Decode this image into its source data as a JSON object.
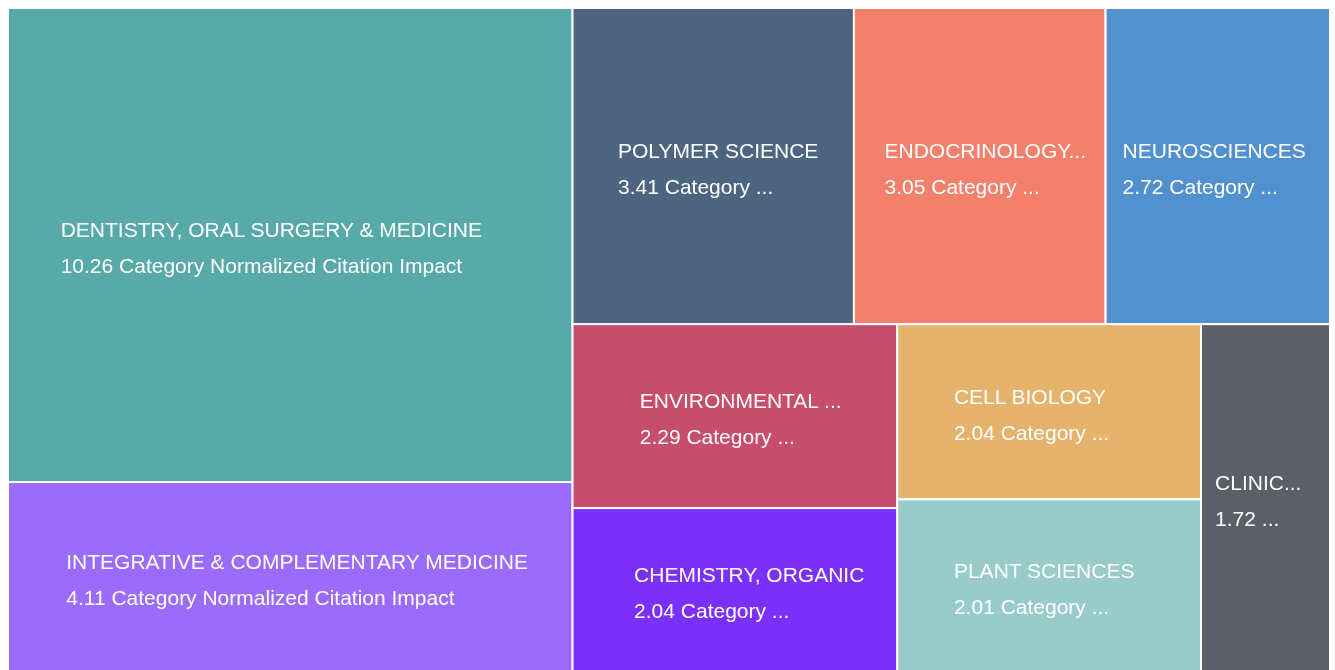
{
  "chart_data": {
    "type": "other",
    "categories": [
      "DENTISTRY, ORAL SURGERY & MEDICINE",
      "INTEGRATIVE & COMPLEMENTARY MEDICINE",
      "POLYMER SCIENCE",
      "ENDOCRINOLOGY...",
      "NEUROSCIENCES",
      "ENVIRONMENTAL ...",
      "CELL BIOLOGY",
      "CHEMISTRY, ORGANIC",
      "PLANT SCIENCES",
      "CLINIC..."
    ],
    "values": [
      10.26,
      4.11,
      3.41,
      3.05,
      2.72,
      2.29,
      2.04,
      2.04,
      2.01,
      1.72
    ],
    "value_labels": [
      "10.26 Category Normalized Citation Impact",
      "4.11 Category Normalized Citation Impact",
      "3.41 Category ...",
      "3.05 Category ...",
      "2.72 Category ...",
      "2.29 Category ...",
      "2.04 Category ...",
      "2.04 Category ...",
      "2.01 Category ...",
      "1.72 ..."
    ],
    "colors": [
      "#58aaa9",
      "#9b6bfb",
      "#4d6580",
      "#f2806d",
      "#5191d0",
      "#c74d6c",
      "#e5b36c",
      "#7a30f8",
      "#9acbcb",
      "#5c5f68"
    ]
  }
}
